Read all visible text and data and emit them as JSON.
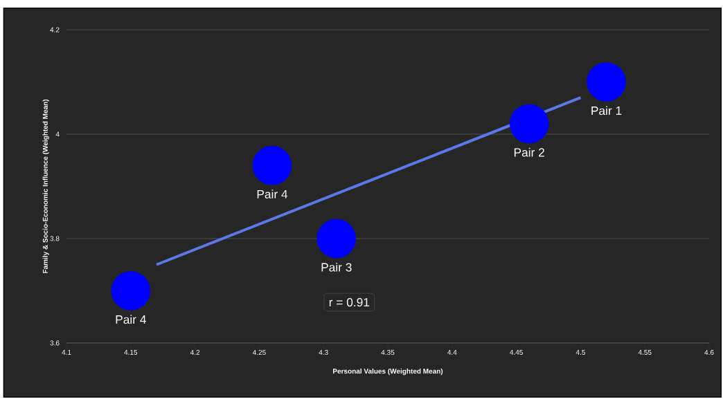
{
  "chart_data": {
    "type": "scatter",
    "xlabel": "Personal Values (Weighted Mean)",
    "ylabel": "Family & Socio-Economic Influence (Weighted Mean)",
    "series": [
      {
        "type": "line",
        "marker": "none",
        "color": "#5b78e8",
        "x": [
          4.17,
          4.5
        ],
        "values": [
          3.75,
          4.07
        ]
      },
      {
        "marker": "circle",
        "color": "#0000ff",
        "x": [
          4.52,
          4.46,
          4.26,
          4.31,
          4.15
        ],
        "values": [
          4.1,
          4.02,
          3.94,
          3.8,
          3.7
        ]
      }
    ],
    "xlim": [
      4.1,
      4.6
    ],
    "ylim": [
      3.6,
      4.2
    ],
    "xticks": [
      4.1,
      4.15,
      4.2,
      4.25,
      4.3,
      4.35,
      4.4,
      4.45,
      4.5,
      4.55,
      4.6
    ],
    "yticks": [
      3.6,
      3.8,
      4,
      4.2
    ],
    "grid": "y",
    "annotations": [
      {
        "text": "Pair 1",
        "x": 4.52,
        "y": 4.1
      },
      {
        "text": "Pair 2",
        "x": 4.46,
        "y": 4.02
      },
      {
        "text": "Pair 4",
        "x": 4.26,
        "y": 3.94
      },
      {
        "text": "Pair 3",
        "x": 4.31,
        "y": 3.8
      },
      {
        "text": "Pair 4",
        "x": 4.15,
        "y": 3.7
      },
      "r = 0.91"
    ]
  }
}
